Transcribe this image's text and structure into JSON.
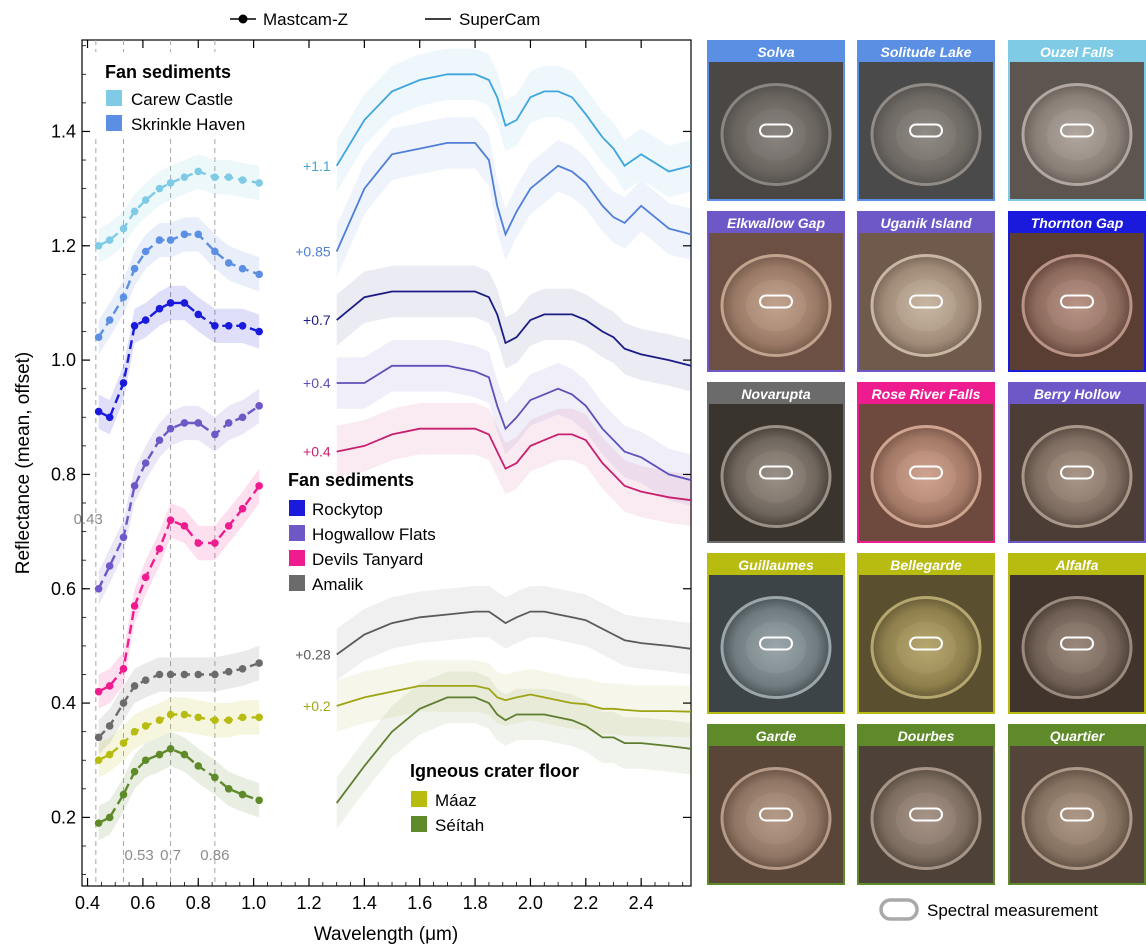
{
  "legend_top": {
    "mastcam": "Mastcam-Z",
    "supercam": "SuperCam"
  },
  "colors": {
    "carew": "#7fcbe6",
    "skrinkle": "#5b8fe4",
    "rockytop": "#1a1adc",
    "hogwallow": "#6e58c8",
    "devils": "#ee1c8f",
    "amalik": "#6b6b6b",
    "maaz": "#b8bc10",
    "seitah": "#5e8a2a",
    "sc_hogwallow": "#5e50b8",
    "sc_devils": "#c81f6e",
    "sc_rockytop": "#1c1c86"
  },
  "chart_data": {
    "type": "line",
    "xlabel": "Wavelength (μm)",
    "ylabel": "Reflectance (mean, offset)",
    "xlim": [
      0.38,
      2.58
    ],
    "ylim": [
      0.08,
      1.56
    ],
    "xticks": [
      "0.4",
      "0.6",
      "0.8",
      "1.0",
      "1.2",
      "1.4",
      "1.6",
      "1.8",
      "2.0",
      "2.2",
      "2.4"
    ],
    "yticks": [
      "0.2",
      "0.4",
      "0.6",
      "0.8",
      "1.0",
      "1.2",
      "1.4"
    ],
    "vlines": [
      {
        "x": 0.43,
        "label": "0.43"
      },
      {
        "x": 0.53,
        "label": "0.53"
      },
      {
        "x": 0.7,
        "label": "0.7"
      },
      {
        "x": 0.86,
        "label": "0.86"
      }
    ],
    "legend_groups": [
      {
        "title": "Fan sediments",
        "entries": [
          {
            "name": "Carew Castle",
            "color": "#7fcbe6"
          },
          {
            "name": "Skrinkle Haven",
            "color": "#5b8fe4"
          }
        ]
      },
      {
        "title": "Fan sediments",
        "entries": [
          {
            "name": "Rockytop",
            "color": "#1a1adc"
          },
          {
            "name": "Hogwallow Flats",
            "color": "#6e58c8"
          },
          {
            "name": "Devils Tanyard",
            "color": "#ee1c8f"
          },
          {
            "name": "Amalik",
            "color": "#6b6b6b"
          }
        ]
      },
      {
        "title": "Igneous crater floor",
        "entries": [
          {
            "name": "Máaz",
            "color": "#b8bc10"
          },
          {
            "name": "Séítah",
            "color": "#5e8a2a"
          }
        ]
      }
    ],
    "mastcam_series": [
      {
        "color": "#7fcbe6",
        "x": [
          0.44,
          0.48,
          0.53,
          0.57,
          0.61,
          0.66,
          0.7,
          0.75,
          0.8,
          0.86,
          0.91,
          0.96,
          1.02
        ],
        "y": [
          1.2,
          1.21,
          1.23,
          1.26,
          1.28,
          1.3,
          1.31,
          1.32,
          1.33,
          1.32,
          1.32,
          1.315,
          1.31
        ]
      },
      {
        "color": "#5b8fe4",
        "x": [
          0.44,
          0.48,
          0.53,
          0.57,
          0.61,
          0.66,
          0.7,
          0.75,
          0.8,
          0.86,
          0.91,
          0.96,
          1.02
        ],
        "y": [
          1.04,
          1.07,
          1.11,
          1.16,
          1.19,
          1.21,
          1.21,
          1.22,
          1.22,
          1.19,
          1.17,
          1.16,
          1.15
        ]
      },
      {
        "color": "#1a1adc",
        "x": [
          0.44,
          0.48,
          0.53,
          0.57,
          0.61,
          0.66,
          0.7,
          0.75,
          0.8,
          0.86,
          0.91,
          0.96,
          1.02
        ],
        "y": [
          0.91,
          0.9,
          0.96,
          1.06,
          1.07,
          1.09,
          1.1,
          1.1,
          1.08,
          1.06,
          1.06,
          1.06,
          1.05
        ]
      },
      {
        "color": "#6e58c8",
        "x": [
          0.44,
          0.48,
          0.53,
          0.57,
          0.61,
          0.66,
          0.7,
          0.75,
          0.8,
          0.86,
          0.91,
          0.96,
          1.02
        ],
        "y": [
          0.6,
          0.64,
          0.69,
          0.78,
          0.82,
          0.86,
          0.88,
          0.89,
          0.89,
          0.87,
          0.89,
          0.9,
          0.92
        ]
      },
      {
        "color": "#ee1c8f",
        "x": [
          0.44,
          0.48,
          0.53,
          0.57,
          0.61,
          0.66,
          0.7,
          0.75,
          0.8,
          0.86,
          0.91,
          0.96,
          1.02
        ],
        "y": [
          0.42,
          0.43,
          0.46,
          0.57,
          0.62,
          0.67,
          0.72,
          0.71,
          0.68,
          0.68,
          0.71,
          0.74,
          0.78
        ]
      },
      {
        "color": "#6b6b6b",
        "x": [
          0.44,
          0.48,
          0.53,
          0.57,
          0.61,
          0.66,
          0.7,
          0.75,
          0.8,
          0.86,
          0.91,
          0.96,
          1.02
        ],
        "y": [
          0.34,
          0.36,
          0.4,
          0.43,
          0.44,
          0.45,
          0.45,
          0.45,
          0.45,
          0.45,
          0.455,
          0.46,
          0.47
        ]
      },
      {
        "color": "#b8bc10",
        "x": [
          0.44,
          0.48,
          0.53,
          0.57,
          0.61,
          0.66,
          0.7,
          0.75,
          0.8,
          0.86,
          0.91,
          0.96,
          1.02
        ],
        "y": [
          0.3,
          0.31,
          0.33,
          0.35,
          0.36,
          0.37,
          0.38,
          0.38,
          0.375,
          0.37,
          0.37,
          0.375,
          0.375
        ]
      },
      {
        "color": "#5e8a2a",
        "x": [
          0.44,
          0.48,
          0.53,
          0.57,
          0.61,
          0.66,
          0.7,
          0.75,
          0.8,
          0.86,
          0.91,
          0.96,
          1.02
        ],
        "y": [
          0.19,
          0.2,
          0.24,
          0.28,
          0.3,
          0.31,
          0.32,
          0.31,
          0.29,
          0.27,
          0.25,
          0.24,
          0.23
        ]
      }
    ],
    "supercam_series": [
      {
        "offset_label": "+1.1",
        "color": "#3ea6dc",
        "x": [
          1.3,
          1.4,
          1.5,
          1.6,
          1.7,
          1.8,
          1.85,
          1.88,
          1.91,
          1.95,
          2.0,
          2.05,
          2.1,
          2.15,
          2.2,
          2.26,
          2.3,
          2.34,
          2.4,
          2.5,
          2.58
        ],
        "y": [
          1.34,
          1.42,
          1.47,
          1.49,
          1.5,
          1.5,
          1.49,
          1.46,
          1.41,
          1.42,
          1.46,
          1.47,
          1.47,
          1.46,
          1.43,
          1.39,
          1.37,
          1.34,
          1.36,
          1.33,
          1.34
        ]
      },
      {
        "offset_label": "+0.85",
        "color": "#4f7fd6",
        "x": [
          1.3,
          1.4,
          1.5,
          1.6,
          1.7,
          1.8,
          1.85,
          1.88,
          1.91,
          1.95,
          2.0,
          2.05,
          2.1,
          2.15,
          2.2,
          2.26,
          2.3,
          2.34,
          2.4,
          2.5,
          2.58
        ],
        "y": [
          1.19,
          1.3,
          1.36,
          1.37,
          1.38,
          1.38,
          1.35,
          1.27,
          1.22,
          1.26,
          1.3,
          1.32,
          1.34,
          1.33,
          1.31,
          1.27,
          1.25,
          1.24,
          1.27,
          1.23,
          1.22
        ]
      },
      {
        "offset_label": "+0.7",
        "color": "#1c1c86",
        "x": [
          1.3,
          1.4,
          1.5,
          1.6,
          1.7,
          1.8,
          1.85,
          1.88,
          1.91,
          1.95,
          2.0,
          2.05,
          2.1,
          2.15,
          2.2,
          2.26,
          2.3,
          2.34,
          2.4,
          2.5,
          2.58
        ],
        "y": [
          1.07,
          1.11,
          1.12,
          1.12,
          1.12,
          1.12,
          1.11,
          1.08,
          1.03,
          1.04,
          1.07,
          1.08,
          1.08,
          1.08,
          1.07,
          1.05,
          1.04,
          1.02,
          1.01,
          1.0,
          0.99
        ]
      },
      {
        "offset_label": "+0.4",
        "color": "#5e50b8",
        "x": [
          1.3,
          1.4,
          1.5,
          1.6,
          1.7,
          1.8,
          1.85,
          1.88,
          1.91,
          1.95,
          2.0,
          2.05,
          2.1,
          2.15,
          2.2,
          2.26,
          2.3,
          2.34,
          2.4,
          2.5,
          2.58
        ],
        "y": [
          0.96,
          0.96,
          0.99,
          0.99,
          0.99,
          0.98,
          0.97,
          0.92,
          0.88,
          0.9,
          0.93,
          0.94,
          0.95,
          0.94,
          0.92,
          0.88,
          0.86,
          0.84,
          0.83,
          0.8,
          0.79
        ]
      },
      {
        "offset_label": "+0.4",
        "color": "#c81f6e",
        "x": [
          1.3,
          1.4,
          1.5,
          1.6,
          1.7,
          1.8,
          1.85,
          1.88,
          1.91,
          1.95,
          2.0,
          2.05,
          2.1,
          2.15,
          2.2,
          2.26,
          2.3,
          2.34,
          2.4,
          2.5,
          2.58
        ],
        "y": [
          0.84,
          0.85,
          0.87,
          0.88,
          0.88,
          0.88,
          0.87,
          0.84,
          0.81,
          0.82,
          0.85,
          0.86,
          0.87,
          0.87,
          0.86,
          0.82,
          0.8,
          0.78,
          0.77,
          0.76,
          0.755
        ]
      },
      {
        "offset_label": "+0.28",
        "color": "#5a5a5a",
        "x": [
          1.3,
          1.4,
          1.5,
          1.6,
          1.7,
          1.8,
          1.85,
          1.88,
          1.91,
          1.95,
          2.0,
          2.05,
          2.1,
          2.15,
          2.2,
          2.26,
          2.3,
          2.34,
          2.4,
          2.5,
          2.58
        ],
        "y": [
          0.485,
          0.52,
          0.54,
          0.55,
          0.555,
          0.56,
          0.56,
          0.55,
          0.54,
          0.55,
          0.56,
          0.56,
          0.555,
          0.55,
          0.545,
          0.53,
          0.52,
          0.51,
          0.505,
          0.5,
          0.495
        ]
      },
      {
        "offset_label": "+0.2",
        "color": "#9ea414",
        "x": [
          1.3,
          1.4,
          1.5,
          1.6,
          1.7,
          1.8,
          1.85,
          1.88,
          1.91,
          1.95,
          2.0,
          2.05,
          2.1,
          2.15,
          2.2,
          2.26,
          2.3,
          2.34,
          2.4,
          2.5,
          2.58
        ],
        "y": [
          0.395,
          0.41,
          0.42,
          0.43,
          0.43,
          0.43,
          0.425,
          0.41,
          0.405,
          0.41,
          0.415,
          0.41,
          0.405,
          0.4,
          0.398,
          0.39,
          0.39,
          0.388,
          0.386,
          0.386,
          0.385
        ]
      },
      {
        "offset_label": "",
        "color": "#5e7d2e",
        "x": [
          1.3,
          1.4,
          1.5,
          1.6,
          1.7,
          1.8,
          1.85,
          1.88,
          1.91,
          1.95,
          2.0,
          2.05,
          2.1,
          2.15,
          2.2,
          2.26,
          2.3,
          2.34,
          2.4,
          2.5,
          2.58
        ],
        "y": [
          0.225,
          0.29,
          0.35,
          0.39,
          0.41,
          0.41,
          0.4,
          0.38,
          0.37,
          0.38,
          0.38,
          0.38,
          0.375,
          0.37,
          0.36,
          0.34,
          0.34,
          0.33,
          0.33,
          0.325,
          0.32
        ]
      }
    ]
  },
  "panels": [
    {
      "name": "Solva",
      "color": "#5b8fe4"
    },
    {
      "name": "Solitude Lake",
      "color": "#5b8fe4"
    },
    {
      "name": "Ouzel Falls",
      "color": "#7fcbe6"
    },
    {
      "name": "Elkwallow Gap",
      "color": "#6e58c8"
    },
    {
      "name": "Uganik Island",
      "color": "#6e58c8"
    },
    {
      "name": "Thornton Gap",
      "color": "#1a1adc"
    },
    {
      "name": "Novarupta",
      "color": "#6b6b6b"
    },
    {
      "name": "Rose River Falls",
      "color": "#ee1c8f"
    },
    {
      "name": "Berry Hollow",
      "color": "#6e58c8"
    },
    {
      "name": "Guillaumes",
      "color": "#b8bc10"
    },
    {
      "name": "Bellegarde",
      "color": "#b8bc10"
    },
    {
      "name": "Alfalfa",
      "color": "#b8bc10"
    },
    {
      "name": "Garde",
      "color": "#5e8a2a"
    },
    {
      "name": "Dourbes",
      "color": "#5e8a2a"
    },
    {
      "name": "Quartier",
      "color": "#5e8a2a"
    }
  ],
  "spectral_legend": "Spectral measurement"
}
